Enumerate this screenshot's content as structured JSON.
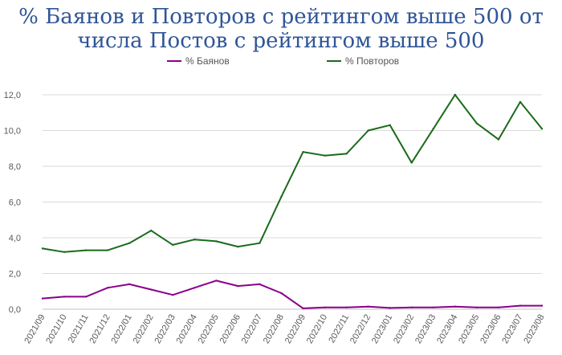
{
  "chart_data": {
    "type": "line",
    "title_lines": [
      "% Баянов и Повторов с рейтингом выше 500 от",
      "числа Постов с рейтингом выше 500"
    ],
    "categories": [
      "2021/09",
      "2021/10",
      "2021/11",
      "2021/12",
      "2022/01",
      "2022/02",
      "2022/03",
      "2022/04",
      "2022/05",
      "2022/06",
      "2022/07",
      "2022/08",
      "2022/09",
      "2022/10",
      "2022/11",
      "2022/12",
      "2023/01",
      "2023/02",
      "2023/03",
      "2023/04",
      "2023/05",
      "2023/06",
      "2023/07",
      "2023/08"
    ],
    "series": [
      {
        "name": "% Баянов",
        "color": "#8b008b",
        "values": [
          0.6,
          0.7,
          0.7,
          1.2,
          1.4,
          1.1,
          0.8,
          1.2,
          1.6,
          1.3,
          1.4,
          0.9,
          0.05,
          0.1,
          0.1,
          0.15,
          0.07,
          0.1,
          0.1,
          0.15,
          0.1,
          0.1,
          0.2,
          0.2
        ]
      },
      {
        "name": "% Повторов",
        "color": "#1a6b1a",
        "values": [
          3.4,
          3.2,
          3.3,
          3.3,
          3.7,
          4.4,
          3.6,
          3.9,
          3.8,
          3.5,
          3.7,
          6.3,
          8.8,
          8.6,
          8.7,
          10.0,
          10.3,
          8.2,
          10.1,
          12.0,
          10.4,
          9.5,
          11.6,
          10.1
        ]
      }
    ],
    "ylim": [
      0,
      12
    ],
    "yticks": [
      "0,0",
      "2,0",
      "4,0",
      "6,0",
      "8,0",
      "10,0",
      "12,0"
    ],
    "legend_position": "top",
    "grid": "horizontal"
  }
}
